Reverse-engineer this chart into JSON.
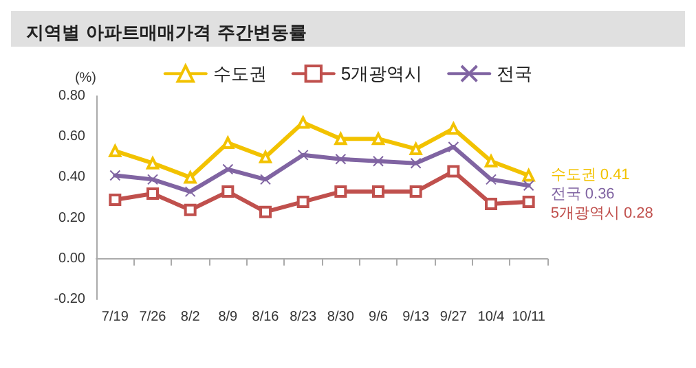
{
  "chart_data": {
    "type": "line",
    "title": "지역별 아파트매매가격 주간변동률",
    "ylabel": "(%)",
    "categories": [
      "7/19",
      "7/26",
      "8/2",
      "8/9",
      "8/16",
      "8/23",
      "8/30",
      "9/6",
      "9/13",
      "9/27",
      "10/4",
      "10/11"
    ],
    "series": [
      {
        "name": "수도권",
        "color": "#f2c200",
        "marker": "triangle",
        "values": [
          0.53,
          0.47,
          0.4,
          0.57,
          0.5,
          0.67,
          0.59,
          0.59,
          0.54,
          0.64,
          0.48,
          0.41
        ]
      },
      {
        "name": "5개광역시",
        "color": "#c0504d",
        "marker": "square",
        "values": [
          0.29,
          0.32,
          0.24,
          0.33,
          0.23,
          0.28,
          0.33,
          0.33,
          0.33,
          0.43,
          0.27,
          0.28
        ]
      },
      {
        "name": "전국",
        "color": "#8064a2",
        "marker": "cross",
        "values": [
          0.41,
          0.39,
          0.33,
          0.44,
          0.39,
          0.51,
          0.49,
          0.48,
          0.47,
          0.55,
          0.39,
          0.36
        ]
      }
    ],
    "ylim": [
      -0.2,
      0.8
    ],
    "yticks": [
      {
        "value": -0.2,
        "label": "-0.20"
      },
      {
        "value": 0,
        "label": "0.00"
      },
      {
        "value": 0.2,
        "label": "0.20"
      },
      {
        "value": 0.4,
        "label": "0.40"
      },
      {
        "value": 0.6,
        "label": "0.60"
      },
      {
        "value": 0.8,
        "label": "0.80"
      }
    ],
    "legend": "top",
    "annotations": [
      {
        "text": "수도권 0.41",
        "x": "10/11",
        "y": 0.41
      },
      {
        "text": "전국 0.36",
        "x": "10/11",
        "y": 0.36
      },
      {
        "text": "5개광역시 0.28",
        "x": "10/11",
        "y": 0.28
      }
    ]
  }
}
